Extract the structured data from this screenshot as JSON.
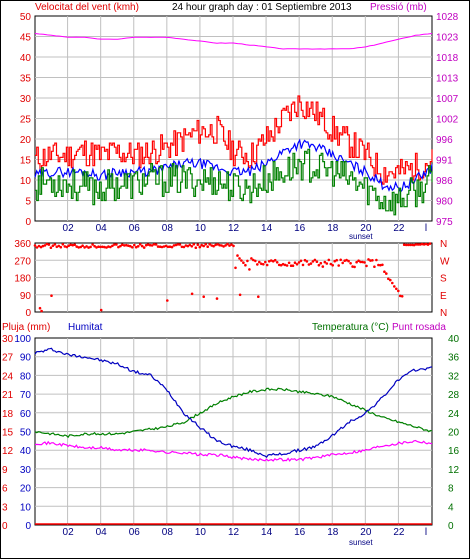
{
  "title": "24 hour graph day : 01 Septiembre 2013",
  "sunset_label": "sunset",
  "x_tick_labels": [
    "02",
    "04",
    "06",
    "08",
    "10",
    "12",
    "14",
    "16",
    "18",
    "20",
    "22",
    "l"
  ],
  "panel1": {
    "left_title": "Velocitat del vent (kmh)",
    "right_title": "Pressió (mb)",
    "left_ticks": [
      "50",
      "45",
      "40",
      "35",
      "30",
      "25",
      "20",
      "15",
      "10",
      "5",
      "0"
    ],
    "right_ticks": [
      "1028",
      "1023",
      "1018",
      "1013",
      "1007",
      "1002",
      "996",
      "991",
      "986",
      "980",
      "975"
    ]
  },
  "panel2": {
    "left_ticks": [
      "360",
      "270",
      "180",
      "90",
      "0"
    ],
    "right_ticks": [
      "N",
      "W",
      "S",
      "E",
      "N"
    ]
  },
  "panel3": {
    "rain_title": "Pluja (mm)",
    "humidity_title": "Humitat",
    "temp_title": "Temperatura (°C)",
    "dew_title": "Punt rosada",
    "rain_ticks": [
      "30",
      "27",
      "24",
      "21",
      "18",
      "15",
      "12",
      "9",
      "6",
      "3",
      "0"
    ],
    "humidity_ticks": [
      "100",
      "90",
      "80",
      "70",
      "60",
      "50",
      "40",
      "30",
      "20",
      "10",
      "0"
    ],
    "temp_ticks": [
      "40",
      "36",
      "32",
      "28",
      "24",
      "20",
      "16",
      "12",
      "8",
      "4",
      "0"
    ]
  },
  "colors": {
    "wind_gust": "#ff0000",
    "wind_avg": "#0000ff",
    "wind_min": "#008000",
    "pressure": "#ff00ff",
    "direction": "#ff0000",
    "humidity": "#0000c0",
    "temperature": "#008000",
    "dewpoint": "#ff00ff",
    "rain": "#ff0000",
    "grid": "#c0c0c0"
  },
  "chart_data": [
    {
      "type": "line",
      "xlabel": "",
      "ylim": [
        0,
        50
      ],
      "y2lim": [
        975,
        1028
      ],
      "x_hours": [
        0,
        1,
        2,
        3,
        4,
        5,
        6,
        7,
        8,
        9,
        10,
        11,
        12,
        13,
        14,
        15,
        16,
        17,
        18,
        19,
        20,
        21,
        22,
        23,
        24
      ],
      "series": [
        {
          "axis": "left",
          "values": [
            15,
            16,
            16,
            17,
            16,
            17,
            16,
            17,
            18,
            20,
            22,
            22,
            17,
            16,
            20,
            25,
            29,
            26,
            22,
            19,
            16,
            12,
            12,
            13,
            15
          ]
        },
        {
          "axis": "left",
          "values": [
            11,
            12,
            12,
            12,
            11,
            12,
            12,
            12,
            13,
            14,
            14,
            13,
            12,
            12,
            14,
            17,
            19,
            18,
            16,
            14,
            12,
            9,
            8,
            10,
            13
          ]
        },
        {
          "axis": "left",
          "values": [
            9,
            10,
            9,
            8,
            8,
            9,
            9,
            10,
            10,
            10,
            10,
            10,
            8,
            8,
            10,
            12,
            14,
            13,
            12,
            10,
            8,
            5,
            5,
            7,
            10
          ]
        },
        {
          "axis": "right",
          "values": [
            1023.5,
            1023,
            1022.5,
            1022.5,
            1022,
            1022,
            1022.5,
            1022.5,
            1022.5,
            1022,
            1021.5,
            1021,
            1021,
            1020.5,
            1020,
            1019.5,
            1019.5,
            1019.5,
            1019.5,
            1019.5,
            1020,
            1021,
            1022,
            1023,
            1023.5
          ]
        }
      ]
    },
    {
      "type": "scatter",
      "ylim": [
        0,
        360
      ],
      "x_hours": [
        0,
        0.3,
        1,
        2,
        3,
        4,
        5,
        6,
        7,
        8,
        9,
        10,
        11,
        12,
        12.3,
        12.7,
        13,
        13.3,
        13.7,
        14,
        14.5,
        15,
        15.5,
        16,
        16.5,
        17,
        17.5,
        18,
        18.5,
        19,
        19.5,
        20,
        20.3,
        20.6,
        21,
        21.5,
        22,
        22.5,
        23,
        23.5,
        24
      ],
      "values": [
        10,
        360,
        355,
        350,
        345,
        350,
        340,
        355,
        350,
        345,
        350,
        340,
        330,
        300,
        290,
        270,
        255,
        240,
        260,
        270,
        265,
        260,
        270,
        250,
        260,
        250,
        265,
        270,
        260,
        265,
        265,
        260,
        270,
        265,
        230,
        120,
        80,
        360,
        355,
        360,
        360
      ]
    },
    {
      "type": "line",
      "x_hours": [
        0,
        1,
        2,
        3,
        4,
        5,
        6,
        7,
        8,
        9,
        10,
        11,
        12,
        13,
        14,
        15,
        16,
        17,
        18,
        19,
        20,
        21,
        22,
        23,
        24
      ],
      "humidity": [
        92,
        94,
        91,
        90,
        88,
        86,
        82,
        80,
        72,
        60,
        52,
        45,
        42,
        40,
        37,
        38,
        40,
        42,
        48,
        55,
        60,
        68,
        78,
        83,
        84
      ],
      "humidity_ylim": [
        0,
        100
      ],
      "temperature_c": [
        20,
        19.5,
        19,
        19.5,
        19.5,
        19.5,
        20,
        20.5,
        21,
        22,
        24,
        26,
        27.5,
        28.5,
        29,
        29,
        28.5,
        28,
        27.5,
        26,
        24.5,
        23,
        22,
        21,
        20
      ],
      "temp_ylim": [
        0,
        40
      ],
      "dewpoint_c": [
        17.5,
        17.5,
        17,
        16.5,
        16.5,
        16,
        16,
        16,
        15.5,
        15.5,
        15,
        15,
        14.5,
        14,
        14,
        14,
        14,
        14.5,
        15,
        15.5,
        16,
        17,
        17.5,
        18,
        17.5
      ],
      "rain_mm": [
        0,
        0,
        0,
        0,
        0,
        0,
        0,
        0,
        0,
        0,
        0,
        0,
        0,
        0,
        0,
        0,
        0,
        0,
        0,
        0,
        0,
        0,
        0,
        0,
        0
      ],
      "rain_ylim": [
        0,
        30
      ]
    }
  ]
}
